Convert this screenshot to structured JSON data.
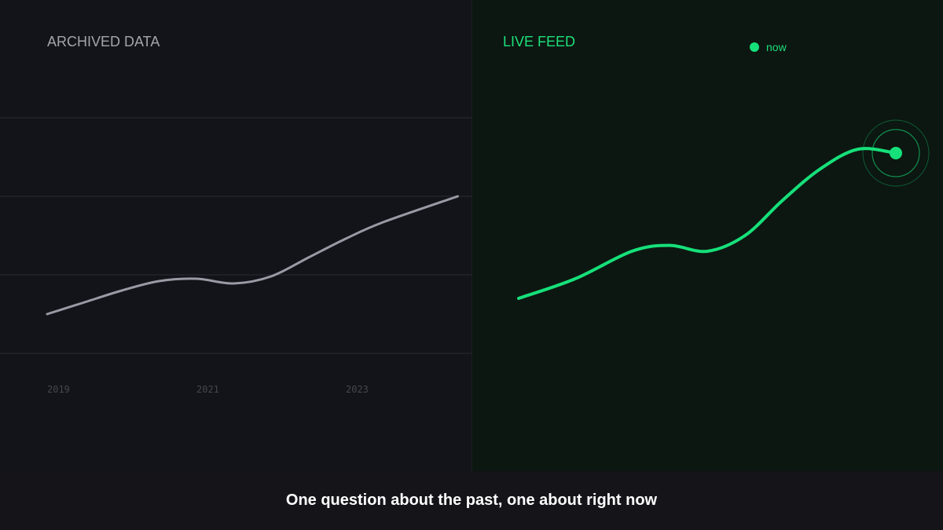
{
  "caption": "One question about the past, one about right now",
  "colors": {
    "archived_line": "#9a9aa5",
    "live_line": "#16e07a",
    "left_background": "#131419",
    "right_background": "#0c1711"
  },
  "chart_data": [
    {
      "type": "line",
      "title": "ARCHIVED DATA",
      "x_ticks": [
        "2019",
        "2021",
        "2023"
      ],
      "grid": true,
      "series": [
        {
          "x": [
            2019.0,
            2019.5,
            2020.0,
            2020.5,
            2021.0,
            2021.5,
            2022.0,
            2022.5,
            2023.0,
            2023.5,
            2024.5
          ],
          "values": [
            0,
            0.25,
            0.5,
            0.7,
            0.75,
            0.65,
            0.8,
            1.2,
            1.6,
            1.95,
            2.5
          ]
        }
      ]
    },
    {
      "type": "line",
      "title": "LIVE FEED",
      "legend": [
        "now"
      ],
      "legend_position": "top-right",
      "grid": false,
      "series": [
        {
          "x": [
            0,
            0.15,
            0.3,
            0.4,
            0.5,
            0.6,
            0.7,
            0.8,
            0.9,
            1.0
          ],
          "values": [
            0,
            0.5,
            1.2,
            1.35,
            1.2,
            1.6,
            2.5,
            3.3,
            3.8,
            3.7
          ]
        }
      ]
    }
  ]
}
